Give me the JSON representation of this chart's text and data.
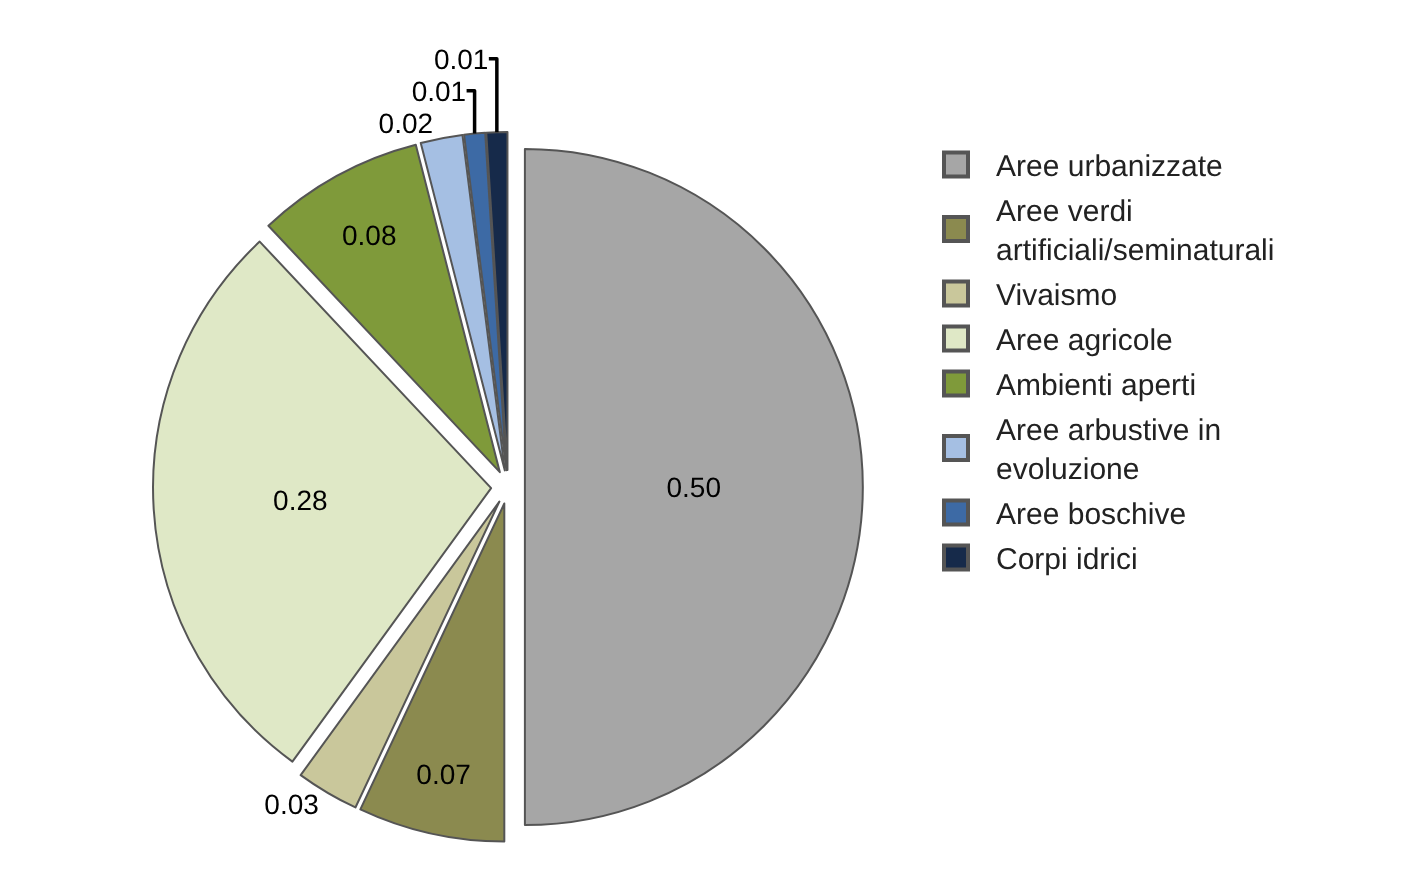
{
  "chart_data": {
    "type": "pie",
    "categories": [
      "Aree urbanizzate",
      "Aree verdi artificiali/seminaturali",
      "Vivaismo",
      "Aree agricole",
      "Ambienti aperti",
      "Aree arbustive in evoluzione",
      "Aree boschive",
      "Corpi idrici"
    ],
    "values": [
      0.5,
      0.07,
      0.03,
      0.28,
      0.08,
      0.02,
      0.01,
      0.01
    ],
    "value_labels": [
      "0.50",
      "0.07",
      "0.03",
      "0.28",
      "0.08",
      "0.02",
      "0.01",
      "0.01"
    ],
    "colors": [
      "#a6a6a6",
      "#8b8a4f",
      "#c9c79b",
      "#dfe8c6",
      "#7f9a3a",
      "#a5bfe3",
      "#3d6aa5",
      "#162a4a"
    ],
    "legend": "right"
  }
}
